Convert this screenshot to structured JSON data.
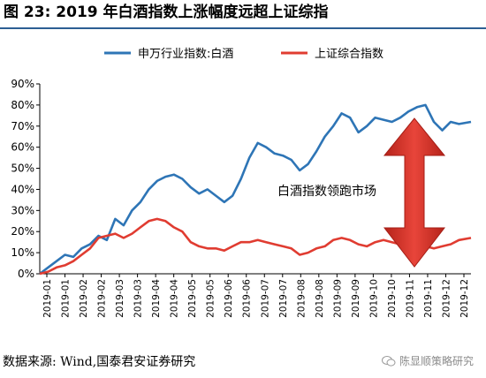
{
  "title": "图 23:  2019 年白酒指数上涨幅度远超上证综指",
  "source": "数据来源:  Wind,国泰君安证券研究",
  "watermark": "陈显顺策略研究",
  "watermark_icon": "wechat-icon",
  "chart_data": {
    "type": "line",
    "ylim": [
      0,
      90
    ],
    "yticks": [
      "0%",
      "10%",
      "20%",
      "30%",
      "40%",
      "50%",
      "60%",
      "70%",
      "80%",
      "90%"
    ],
    "yunit": "%",
    "xmin": "2019-01-01",
    "xmax": "2019-12-27",
    "xticks": [
      "2019-01",
      "2019-01",
      "2019-02",
      "2019-02",
      "2019-03",
      "2019-03",
      "2019-04",
      "2019-04",
      "2019-05",
      "2019-05",
      "2019-06",
      "2019-06",
      "2019-07",
      "2019-07",
      "2019-08",
      "2019-08",
      "2019-09",
      "2019-09",
      "2019-10",
      "2019-10",
      "2019-11",
      "2019-11",
      "2019-12",
      "2019-12"
    ],
    "legend_position": "top",
    "grid": false,
    "annotation": "白酒指数领跑市场",
    "series": [
      {
        "name": "申万行业指数:白酒",
        "color": "#2e75b6",
        "points": [
          [
            "2019-01-01",
            0
          ],
          [
            "2019-01-08",
            3
          ],
          [
            "2019-01-15",
            6
          ],
          [
            "2019-01-22",
            9
          ],
          [
            "2019-01-29",
            8
          ],
          [
            "2019-02-05",
            12
          ],
          [
            "2019-02-12",
            14
          ],
          [
            "2019-02-19",
            18
          ],
          [
            "2019-02-26",
            16
          ],
          [
            "2019-03-05",
            26
          ],
          [
            "2019-03-12",
            23
          ],
          [
            "2019-03-19",
            30
          ],
          [
            "2019-03-26",
            34
          ],
          [
            "2019-04-02",
            40
          ],
          [
            "2019-04-09",
            44
          ],
          [
            "2019-04-16",
            46
          ],
          [
            "2019-04-23",
            47
          ],
          [
            "2019-04-30",
            45
          ],
          [
            "2019-05-07",
            41
          ],
          [
            "2019-05-14",
            38
          ],
          [
            "2019-05-21",
            40
          ],
          [
            "2019-05-28",
            37
          ],
          [
            "2019-06-04",
            34
          ],
          [
            "2019-06-11",
            37
          ],
          [
            "2019-06-18",
            45
          ],
          [
            "2019-06-25",
            55
          ],
          [
            "2019-07-02",
            62
          ],
          [
            "2019-07-09",
            60
          ],
          [
            "2019-07-16",
            57
          ],
          [
            "2019-07-23",
            56
          ],
          [
            "2019-07-30",
            54
          ],
          [
            "2019-08-06",
            49
          ],
          [
            "2019-08-13",
            52
          ],
          [
            "2019-08-20",
            58
          ],
          [
            "2019-08-27",
            65
          ],
          [
            "2019-09-03",
            70
          ],
          [
            "2019-09-10",
            76
          ],
          [
            "2019-09-17",
            74
          ],
          [
            "2019-09-24",
            67
          ],
          [
            "2019-10-01",
            70
          ],
          [
            "2019-10-08",
            74
          ],
          [
            "2019-10-15",
            73
          ],
          [
            "2019-10-22",
            72
          ],
          [
            "2019-10-29",
            74
          ],
          [
            "2019-11-05",
            77
          ],
          [
            "2019-11-12",
            79
          ],
          [
            "2019-11-19",
            80
          ],
          [
            "2019-11-26",
            72
          ],
          [
            "2019-12-03",
            68
          ],
          [
            "2019-12-10",
            72
          ],
          [
            "2019-12-17",
            71
          ],
          [
            "2019-12-27",
            72
          ]
        ]
      },
      {
        "name": "上证综合指数",
        "color": "#e03c31",
        "points": [
          [
            "2019-01-01",
            0
          ],
          [
            "2019-01-08",
            1
          ],
          [
            "2019-01-15",
            3
          ],
          [
            "2019-01-22",
            4
          ],
          [
            "2019-01-29",
            6
          ],
          [
            "2019-02-05",
            9
          ],
          [
            "2019-02-12",
            12
          ],
          [
            "2019-02-19",
            17
          ],
          [
            "2019-02-26",
            18
          ],
          [
            "2019-03-05",
            19
          ],
          [
            "2019-03-12",
            17
          ],
          [
            "2019-03-19",
            19
          ],
          [
            "2019-03-26",
            22
          ],
          [
            "2019-04-02",
            25
          ],
          [
            "2019-04-09",
            26
          ],
          [
            "2019-04-16",
            25
          ],
          [
            "2019-04-23",
            22
          ],
          [
            "2019-04-30",
            20
          ],
          [
            "2019-05-07",
            15
          ],
          [
            "2019-05-14",
            13
          ],
          [
            "2019-05-21",
            12
          ],
          [
            "2019-05-28",
            12
          ],
          [
            "2019-06-04",
            11
          ],
          [
            "2019-06-11",
            13
          ],
          [
            "2019-06-18",
            15
          ],
          [
            "2019-06-25",
            15
          ],
          [
            "2019-07-02",
            16
          ],
          [
            "2019-07-09",
            15
          ],
          [
            "2019-07-16",
            14
          ],
          [
            "2019-07-23",
            13
          ],
          [
            "2019-07-30",
            12
          ],
          [
            "2019-08-06",
            9
          ],
          [
            "2019-08-13",
            10
          ],
          [
            "2019-08-20",
            12
          ],
          [
            "2019-08-27",
            13
          ],
          [
            "2019-09-03",
            16
          ],
          [
            "2019-09-10",
            17
          ],
          [
            "2019-09-17",
            16
          ],
          [
            "2019-09-24",
            14
          ],
          [
            "2019-10-01",
            13
          ],
          [
            "2019-10-08",
            15
          ],
          [
            "2019-10-15",
            16
          ],
          [
            "2019-10-22",
            15
          ],
          [
            "2019-10-29",
            14
          ],
          [
            "2019-11-05",
            14
          ],
          [
            "2019-11-12",
            12
          ],
          [
            "2019-11-19",
            13
          ],
          [
            "2019-11-26",
            12
          ],
          [
            "2019-12-03",
            13
          ],
          [
            "2019-12-10",
            14
          ],
          [
            "2019-12-17",
            16
          ],
          [
            "2019-12-27",
            17
          ]
        ]
      }
    ]
  }
}
